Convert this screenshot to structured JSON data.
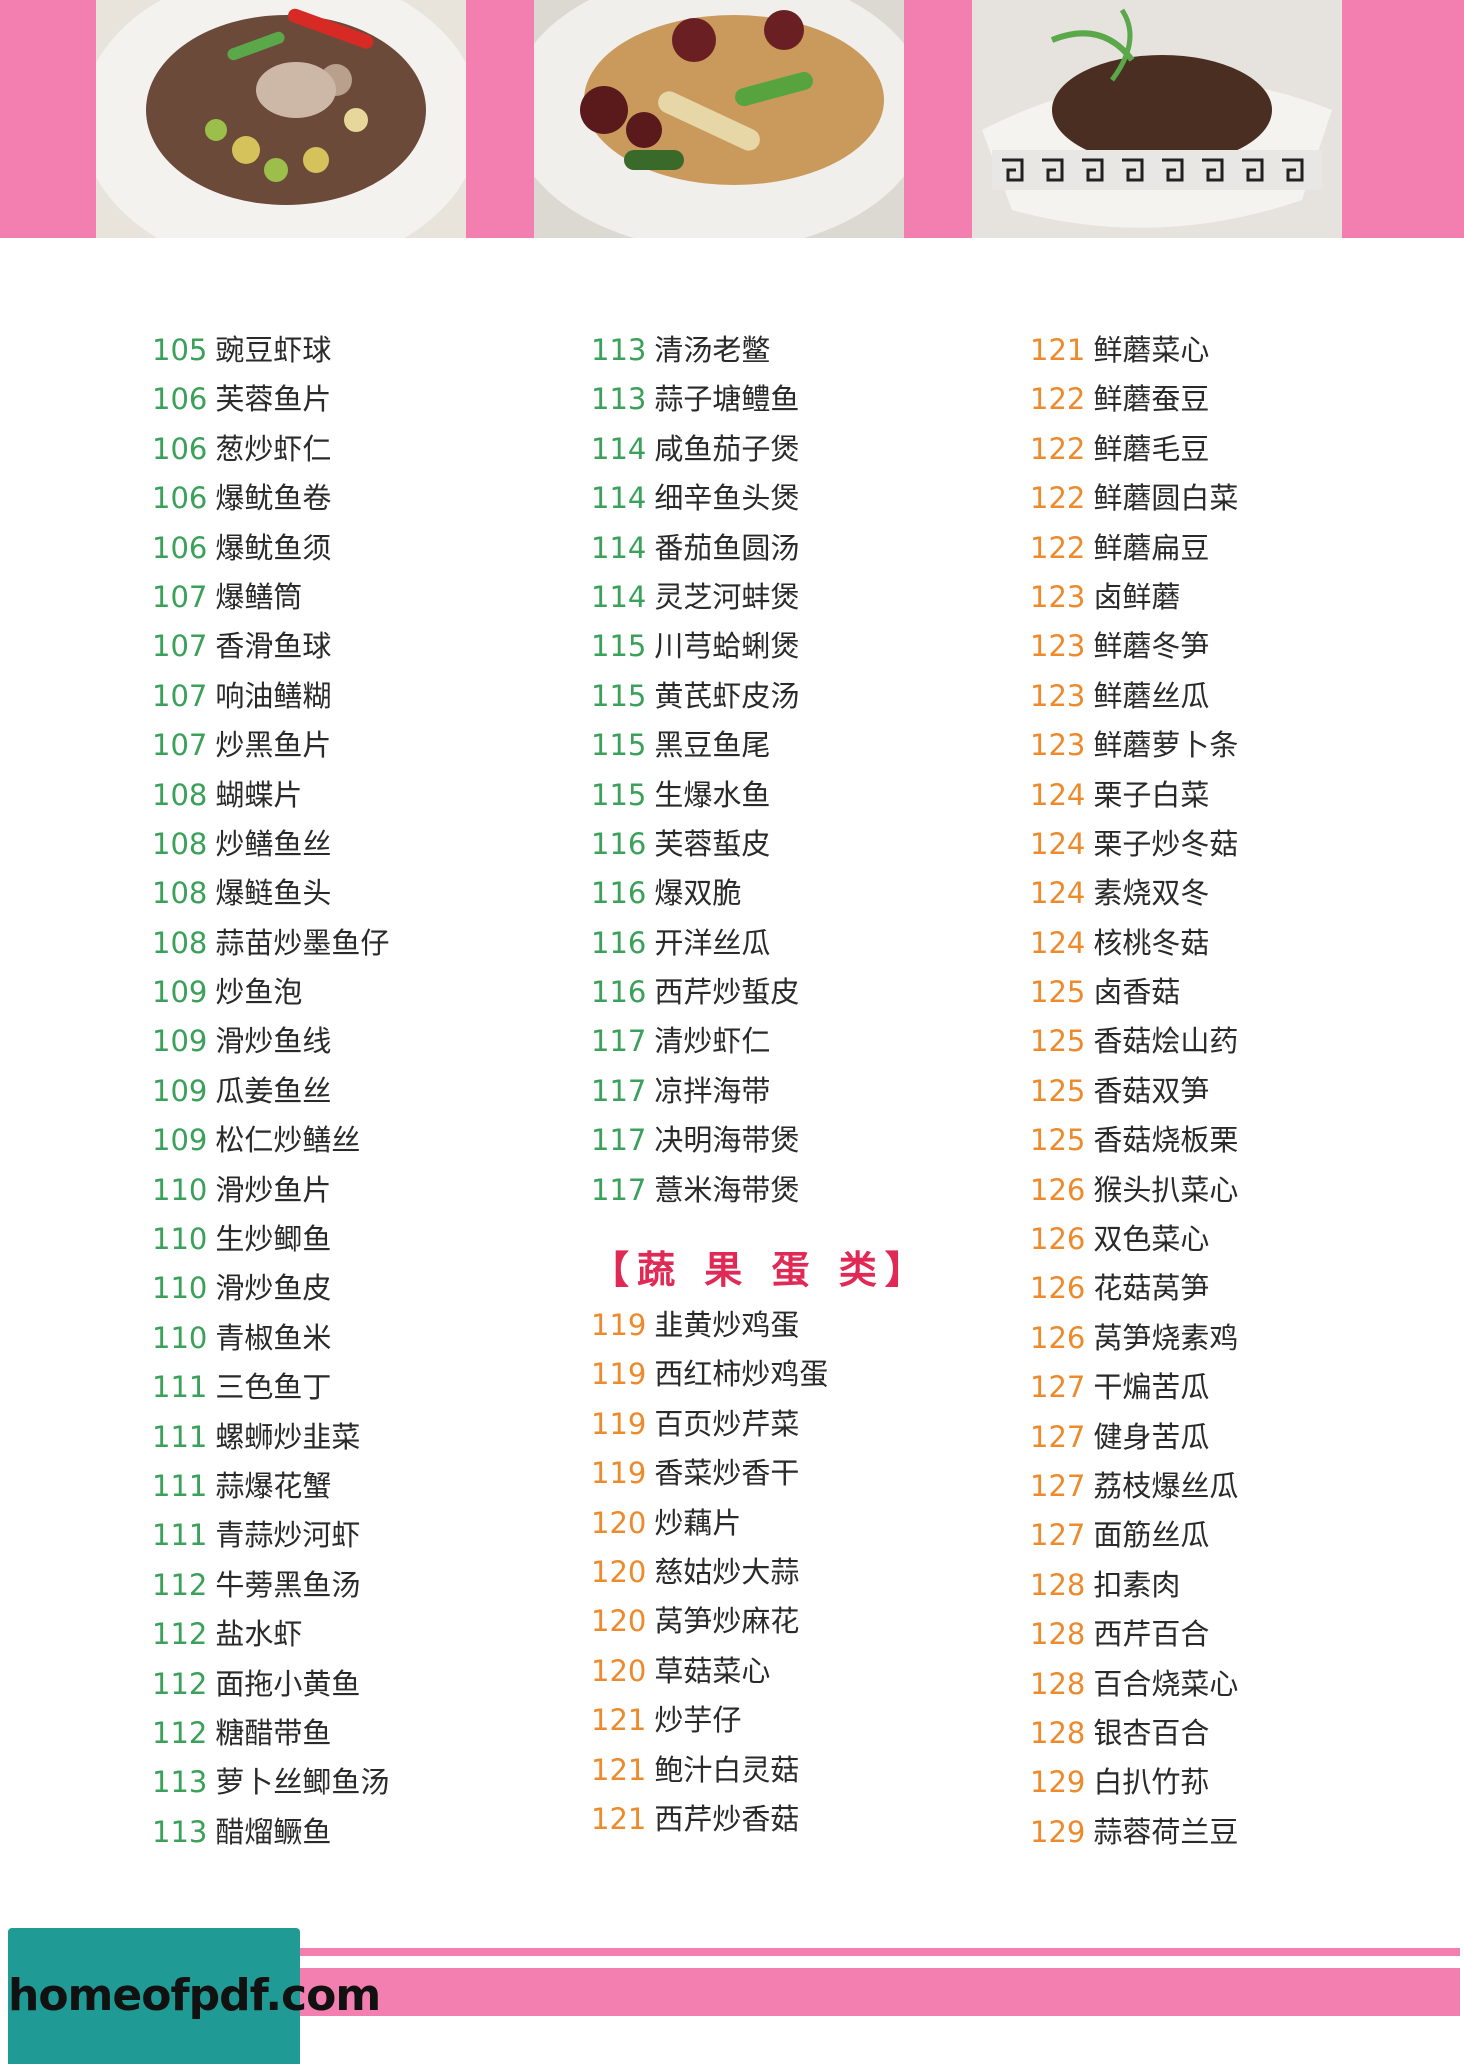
{
  "section_title": "【蔬 果 蛋 类】",
  "watermark": "homeofpdf.com",
  "colors": {
    "banner_pink": "#f27fb0",
    "num_green": "#3aa05a",
    "num_orange": "#ec8a2c",
    "title_red": "#e02a55",
    "stamp_teal": "#1f9a94"
  },
  "photos": [
    "dish-photo-1",
    "dish-photo-2",
    "dish-photo-3"
  ],
  "col1": [
    {
      "n": "105",
      "t": "豌豆虾球"
    },
    {
      "n": "106",
      "t": "芙蓉鱼片"
    },
    {
      "n": "106",
      "t": "葱炒虾仁"
    },
    {
      "n": "106",
      "t": "爆鱿鱼卷"
    },
    {
      "n": "106",
      "t": "爆鱿鱼须"
    },
    {
      "n": "107",
      "t": "爆鳝筒"
    },
    {
      "n": "107",
      "t": "香滑鱼球"
    },
    {
      "n": "107",
      "t": "响油鳝糊"
    },
    {
      "n": "107",
      "t": "炒黑鱼片"
    },
    {
      "n": "108",
      "t": "蝴蝶片"
    },
    {
      "n": "108",
      "t": "炒鳝鱼丝"
    },
    {
      "n": "108",
      "t": "爆鲢鱼头"
    },
    {
      "n": "108",
      "t": "蒜苗炒墨鱼仔"
    },
    {
      "n": "109",
      "t": "炒鱼泡"
    },
    {
      "n": "109",
      "t": "滑炒鱼线"
    },
    {
      "n": "109",
      "t": "瓜姜鱼丝"
    },
    {
      "n": "109",
      "t": "松仁炒鳝丝"
    },
    {
      "n": "110",
      "t": "滑炒鱼片"
    },
    {
      "n": "110",
      "t": "生炒鲫鱼"
    },
    {
      "n": "110",
      "t": "滑炒鱼皮"
    },
    {
      "n": "110",
      "t": "青椒鱼米"
    },
    {
      "n": "111",
      "t": "三色鱼丁"
    },
    {
      "n": "111",
      "t": "螺蛳炒韭菜"
    },
    {
      "n": "111",
      "t": "蒜爆花蟹"
    },
    {
      "n": "111",
      "t": "青蒜炒河虾"
    },
    {
      "n": "112",
      "t": "牛蒡黑鱼汤"
    },
    {
      "n": "112",
      "t": "盐水虾"
    },
    {
      "n": "112",
      "t": "面拖小黄鱼"
    },
    {
      "n": "112",
      "t": "糖醋带鱼"
    },
    {
      "n": "113",
      "t": "萝卜丝鲫鱼汤"
    },
    {
      "n": "113",
      "t": "醋熘鳜鱼"
    }
  ],
  "col2a": [
    {
      "n": "113",
      "t": "清汤老鳖"
    },
    {
      "n": "113",
      "t": "蒜子塘鳢鱼"
    },
    {
      "n": "114",
      "t": "咸鱼茄子煲"
    },
    {
      "n": "114",
      "t": "细辛鱼头煲"
    },
    {
      "n": "114",
      "t": "番茄鱼圆汤"
    },
    {
      "n": "114",
      "t": "灵芝河蚌煲"
    },
    {
      "n": "115",
      "t": "川芎蛤蜊煲"
    },
    {
      "n": "115",
      "t": "黄芪虾皮汤"
    },
    {
      "n": "115",
      "t": "黑豆鱼尾"
    },
    {
      "n": "115",
      "t": "生爆水鱼"
    },
    {
      "n": "116",
      "t": "芙蓉蜇皮"
    },
    {
      "n": "116",
      "t": "爆双脆"
    },
    {
      "n": "116",
      "t": "开洋丝瓜"
    },
    {
      "n": "116",
      "t": "西芹炒蜇皮"
    },
    {
      "n": "117",
      "t": "清炒虾仁"
    },
    {
      "n": "117",
      "t": "凉拌海带"
    },
    {
      "n": "117",
      "t": "决明海带煲"
    },
    {
      "n": "117",
      "t": "薏米海带煲"
    }
  ],
  "col2b": [
    {
      "n": "119",
      "t": "韭黄炒鸡蛋"
    },
    {
      "n": "119",
      "t": "西红柿炒鸡蛋"
    },
    {
      "n": "119",
      "t": "百页炒芹菜"
    },
    {
      "n": "119",
      "t": "香菜炒香干"
    },
    {
      "n": "120",
      "t": "炒藕片"
    },
    {
      "n": "120",
      "t": "慈姑炒大蒜"
    },
    {
      "n": "120",
      "t": "莴笋炒麻花"
    },
    {
      "n": "120",
      "t": "草菇菜心"
    },
    {
      "n": "121",
      "t": "炒芋仔"
    },
    {
      "n": "121",
      "t": "鲍汁白灵菇"
    },
    {
      "n": "121",
      "t": "西芹炒香菇"
    }
  ],
  "col3": [
    {
      "n": "121",
      "t": "鲜蘑菜心"
    },
    {
      "n": "122",
      "t": "鲜蘑蚕豆"
    },
    {
      "n": "122",
      "t": "鲜蘑毛豆"
    },
    {
      "n": "122",
      "t": "鲜蘑圆白菜"
    },
    {
      "n": "122",
      "t": "鲜蘑扁豆"
    },
    {
      "n": "123",
      "t": "卤鲜蘑"
    },
    {
      "n": "123",
      "t": "鲜蘑冬笋"
    },
    {
      "n": "123",
      "t": "鲜蘑丝瓜"
    },
    {
      "n": "123",
      "t": "鲜蘑萝卜条"
    },
    {
      "n": "124",
      "t": "栗子白菜"
    },
    {
      "n": "124",
      "t": "栗子炒冬菇"
    },
    {
      "n": "124",
      "t": "素烧双冬"
    },
    {
      "n": "124",
      "t": "核桃冬菇"
    },
    {
      "n": "125",
      "t": "卤香菇"
    },
    {
      "n": "125",
      "t": "香菇烩山药"
    },
    {
      "n": "125",
      "t": "香菇双笋"
    },
    {
      "n": "125",
      "t": "香菇烧板栗"
    },
    {
      "n": "126",
      "t": "猴头扒菜心"
    },
    {
      "n": "126",
      "t": "双色菜心"
    },
    {
      "n": "126",
      "t": "花菇莴笋"
    },
    {
      "n": "126",
      "t": "莴笋烧素鸡"
    },
    {
      "n": "127",
      "t": "干煸苦瓜"
    },
    {
      "n": "127",
      "t": "健身苦瓜"
    },
    {
      "n": "127",
      "t": "荔枝爆丝瓜"
    },
    {
      "n": "127",
      "t": "面筋丝瓜"
    },
    {
      "n": "128",
      "t": "扣素肉"
    },
    {
      "n": "128",
      "t": "西芹百合"
    },
    {
      "n": "128",
      "t": "百合烧菜心"
    },
    {
      "n": "128",
      "t": "银杏百合"
    },
    {
      "n": "129",
      "t": "白扒竹荪"
    },
    {
      "n": "129",
      "t": "蒜蓉荷兰豆"
    }
  ]
}
